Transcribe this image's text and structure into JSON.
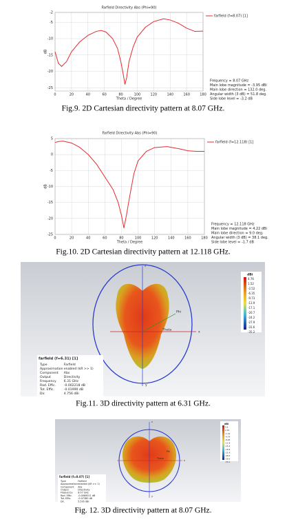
{
  "chart_data": [
    {
      "type": "line",
      "title": "Farfield Directivity Abs (Phi=90)",
      "xlabel": "Theta / Degree",
      "ylabel": "dB",
      "xlim": [
        0,
        180
      ],
      "xticks": [
        0,
        20,
        40,
        60,
        80,
        100,
        120,
        140,
        160,
        180
      ],
      "ylim": [
        -26,
        -2
      ],
      "yticks": [
        -2,
        -5,
        -10,
        -15,
        -20,
        -25
      ],
      "grid": true,
      "legend": "right",
      "x": [
        0,
        4,
        8,
        14,
        20,
        30,
        40,
        50,
        56,
        62,
        70,
        76,
        80,
        83,
        85,
        87,
        90,
        95,
        100,
        110,
        120,
        132,
        140,
        150,
        160,
        170,
        180
      ],
      "series": [
        {
          "name": "farfield (f=8.07) [1]",
          "color": "#e8292f",
          "values": [
            -14,
            -17.5,
            -18.5,
            -17,
            -14,
            -11,
            -9,
            -7.8,
            -7.5,
            -8,
            -10,
            -13,
            -17,
            -21,
            -24,
            -22,
            -17,
            -12.5,
            -9.5,
            -6.5,
            -4.8,
            -3.95,
            -4.3,
            -5.3,
            -6.8,
            -7.8,
            -7.7
          ]
        }
      ],
      "annotations": [
        "Frequency = 8.07 GHz",
        "Main lobe magnitude = -3.95 dBi",
        "Main lobe direction = 132.0 deg.",
        "Angular width (3 dB) = 51.8 deg.",
        "Side lobe level = -3.2 dB"
      ]
    },
    {
      "type": "line",
      "title": "Farfield Directivity Abs (Phi=90)",
      "xlabel": "Theta / Degree",
      "ylabel": "dB",
      "xlim": [
        0,
        180
      ],
      "xticks": [
        0,
        20,
        40,
        60,
        80,
        100,
        120,
        140,
        160,
        180
      ],
      "ylim": [
        -25,
        5
      ],
      "yticks": [
        5,
        0,
        -5,
        -10,
        -15,
        -20,
        -25
      ],
      "grid": true,
      "legend": "right",
      "x": [
        0,
        5,
        10,
        20,
        30,
        40,
        50,
        60,
        70,
        76,
        80,
        83,
        86,
        90,
        95,
        100,
        110,
        120,
        135,
        150,
        160,
        170,
        180
      ],
      "series": [
        {
          "name": "farfield (f=12.118) [1]",
          "color": "#e8292f",
          "values": [
            3.8,
            4.1,
            4.2,
            3.6,
            2.2,
            0,
            -3,
            -7,
            -11,
            -15,
            -19,
            -23,
            -19,
            -13,
            -6,
            -2,
            1,
            2.2,
            2.5,
            1.8,
            1.2,
            1,
            1
          ]
        }
      ],
      "annotations": [
        "Frequency = 12.118 GHz",
        "Main lobe magnitude = 4.22 dBi",
        "Main lobe direction = 9.0 deg.",
        "Angular width (3 dB) = 38.1 deg.",
        "Side lobe level = -1.7 dB"
      ]
    }
  ],
  "figures_3d": [
    {
      "title": "farfield (f=6.31) [1]",
      "rows": [
        [
          "Type",
          "Farfield"
        ],
        [
          "Approximation",
          "enabled (kR >> 1)"
        ],
        [
          "Component",
          "Abs"
        ],
        [
          "Output",
          "Directivity"
        ],
        [
          "Frequency",
          "6.31 GHz"
        ],
        [
          "Rad. Effic.",
          "-0.002218 dB"
        ],
        [
          "Tot. Effic.",
          "-0.01990 dB"
        ],
        [
          "Dir.",
          "4.756 dBi"
        ]
      ],
      "unit": "dBi",
      "colorbar": [
        "4.76",
        "1.52",
        "-2.52",
        "-6.35",
        "-9.73",
        "-13.9",
        "-17.1",
        "-20.7",
        "-24.2",
        "-27.9",
        "-31.6",
        "-35.2"
      ],
      "axes": [
        "z",
        "y",
        "x",
        "Phi",
        "Theta"
      ]
    },
    {
      "title": "farfield (f=8.07) [1]",
      "rows": [
        [
          "Type",
          "Farfield"
        ],
        [
          "Approximation",
          "enabled (kR >> 1)"
        ],
        [
          "Component",
          "Abs"
        ],
        [
          "Output",
          "Directivity"
        ],
        [
          "Frequency",
          "8.07 GHz"
        ],
        [
          "Rad. Effic.",
          "-0.0089011 dB"
        ],
        [
          "Tot. Effic.",
          "-0.07380 dB"
        ],
        [
          "Dir.",
          "5.595 dBi"
        ]
      ],
      "unit": "dBi",
      "colorbar": [
        "5.6",
        "2.35",
        "-1.19",
        "-4.74",
        "-8.28",
        "-11.8",
        "-15.4",
        "-18.9",
        "-22.4",
        "-26.0",
        "-29.5",
        "-33.1"
      ],
      "axes": [
        "z",
        "y",
        "x",
        "Phi",
        "Theta"
      ]
    }
  ],
  "captions": [
    "Fig.9. 2D Cartesian directivity pattern at 8.07 GHz.",
    "Fig.10. 2D Cartesian directivity pattern at 12.118 GHz.",
    "Fig.11. 3D directivity pattern at 6.31 GHz.",
    "Fig. 12. 3D directivity pattern at 8.07 GHz."
  ]
}
